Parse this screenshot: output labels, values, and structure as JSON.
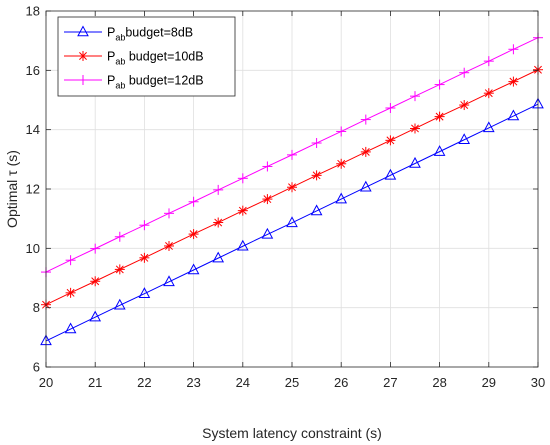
{
  "chart_data": {
    "type": "line",
    "xlabel": "System latency constraint (s)",
    "ylabel": "Optimal τ (s)",
    "xlim": [
      20,
      30
    ],
    "ylim": [
      6,
      18
    ],
    "xticks": [
      20,
      21,
      22,
      23,
      24,
      25,
      26,
      27,
      28,
      29,
      30
    ],
    "yticks": [
      6,
      8,
      10,
      12,
      14,
      16,
      18
    ],
    "grid": true,
    "legend_position": "top-left",
    "x": [
      20,
      20.5,
      21,
      21.5,
      22,
      22.5,
      23,
      23.5,
      24,
      24.5,
      25,
      25.5,
      26,
      26.5,
      27,
      27.5,
      28,
      28.5,
      29,
      29.5,
      30
    ],
    "series": [
      {
        "name_main": "P",
        "name_sub": "ab",
        "name_rest": "budget=8dB",
        "color": "#0000ff",
        "marker": "triangle",
        "values": [
          6.88,
          7.28,
          7.68,
          8.08,
          8.47,
          8.87,
          9.27,
          9.67,
          10.07,
          10.47,
          10.86,
          11.26,
          11.66,
          12.06,
          12.46,
          12.86,
          13.26,
          13.66,
          14.06,
          14.46,
          14.86
        ]
      },
      {
        "name_main": "P",
        "name_sub": "ab",
        "name_rest": " budget=10dB",
        "color": "#ff0000",
        "marker": "asterisk",
        "values": [
          8.1,
          8.5,
          8.89,
          9.29,
          9.68,
          10.08,
          10.48,
          10.87,
          11.27,
          11.66,
          12.06,
          12.46,
          12.85,
          13.25,
          13.64,
          14.04,
          14.44,
          14.83,
          15.23,
          15.62,
          16.02
        ]
      },
      {
        "name_main": "P",
        "name_sub": "ab",
        "name_rest": " budget=12dB",
        "color": "#ff00ff",
        "marker": "plus",
        "values": [
          9.2,
          9.6,
          9.99,
          10.39,
          10.78,
          11.18,
          11.57,
          11.97,
          12.36,
          12.76,
          13.15,
          13.55,
          13.94,
          14.34,
          14.73,
          15.13,
          15.52,
          15.92,
          16.31,
          16.71,
          17.1
        ]
      }
    ]
  }
}
